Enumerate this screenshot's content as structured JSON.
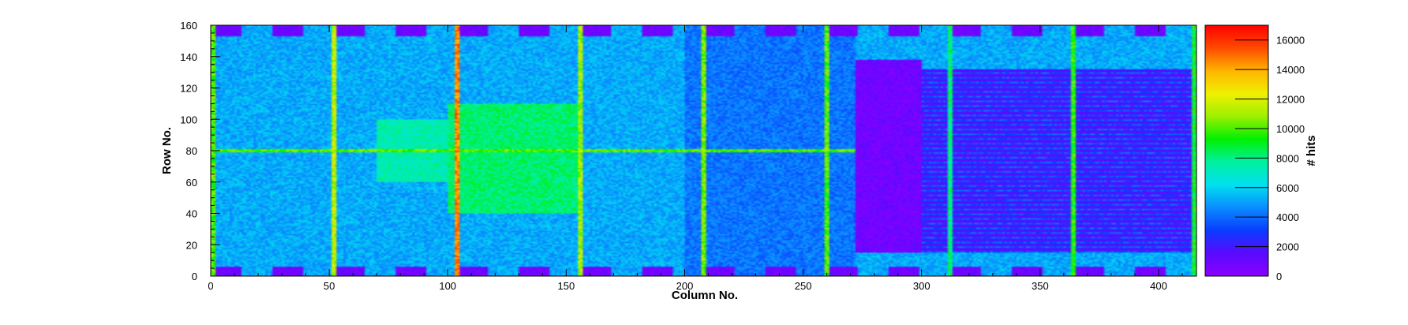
{
  "chart_data": {
    "type": "heatmap",
    "title": "",
    "xlabel": "Column No.",
    "ylabel": "Row No.",
    "zlabel": "# hits",
    "xlim": [
      0,
      416
    ],
    "ylim": [
      0,
      160
    ],
    "zlim": [
      0,
      17000
    ],
    "x_ticks": [
      0,
      50,
      100,
      150,
      200,
      250,
      300,
      350,
      400
    ],
    "y_ticks": [
      0,
      20,
      40,
      60,
      80,
      100,
      120,
      140,
      160
    ],
    "z_ticks": [
      0,
      2000,
      4000,
      6000,
      8000,
      10000,
      12000,
      14000,
      16000
    ],
    "colormap": "rainbow",
    "colormap_stops": [
      "#8a00ff",
      "#5a0aff",
      "#0a3cff",
      "#0a8cff",
      "#00e0f0",
      "#00f0a0",
      "#00f000",
      "#9cf000",
      "#f0f000",
      "#ffb400",
      "#ff4a00",
      "#ff0000"
    ],
    "background_level": 5200,
    "bright_columns": [
      {
        "x": 1,
        "value": 10000
      },
      {
        "x": 52,
        "value": 11500
      },
      {
        "x": 104,
        "value": 14500
      },
      {
        "x": 156,
        "value": 11000
      },
      {
        "x": 208,
        "value": 10500
      },
      {
        "x": 260,
        "value": 10000
      },
      {
        "x": 312,
        "value": 8000
      },
      {
        "x": 364,
        "value": 9500
      },
      {
        "x": 415,
        "value": 9000
      }
    ],
    "bright_rows": [
      {
        "y": 80,
        "value": 10000
      }
    ],
    "regions": [
      {
        "label": "left digital block",
        "x": [
          200,
          272
        ],
        "y": [
          0,
          160
        ],
        "value": 4200
      },
      {
        "label": "analog block",
        "x": [
          272,
          300
        ],
        "y": [
          15,
          138
        ],
        "value": 800
      },
      {
        "label": "right hatched block",
        "x": [
          300,
          416
        ],
        "y": [
          15,
          132
        ],
        "value": 1800
      },
      {
        "label": "central green region",
        "x": [
          100,
          155
        ],
        "y": [
          40,
          110
        ],
        "value": 8200
      },
      {
        "label": "central green region 2",
        "x": [
          70,
          100
        ],
        "y": [
          60,
          100
        ],
        "value": 7400
      }
    ],
    "annotations": [],
    "legend": "none",
    "grid": false
  }
}
